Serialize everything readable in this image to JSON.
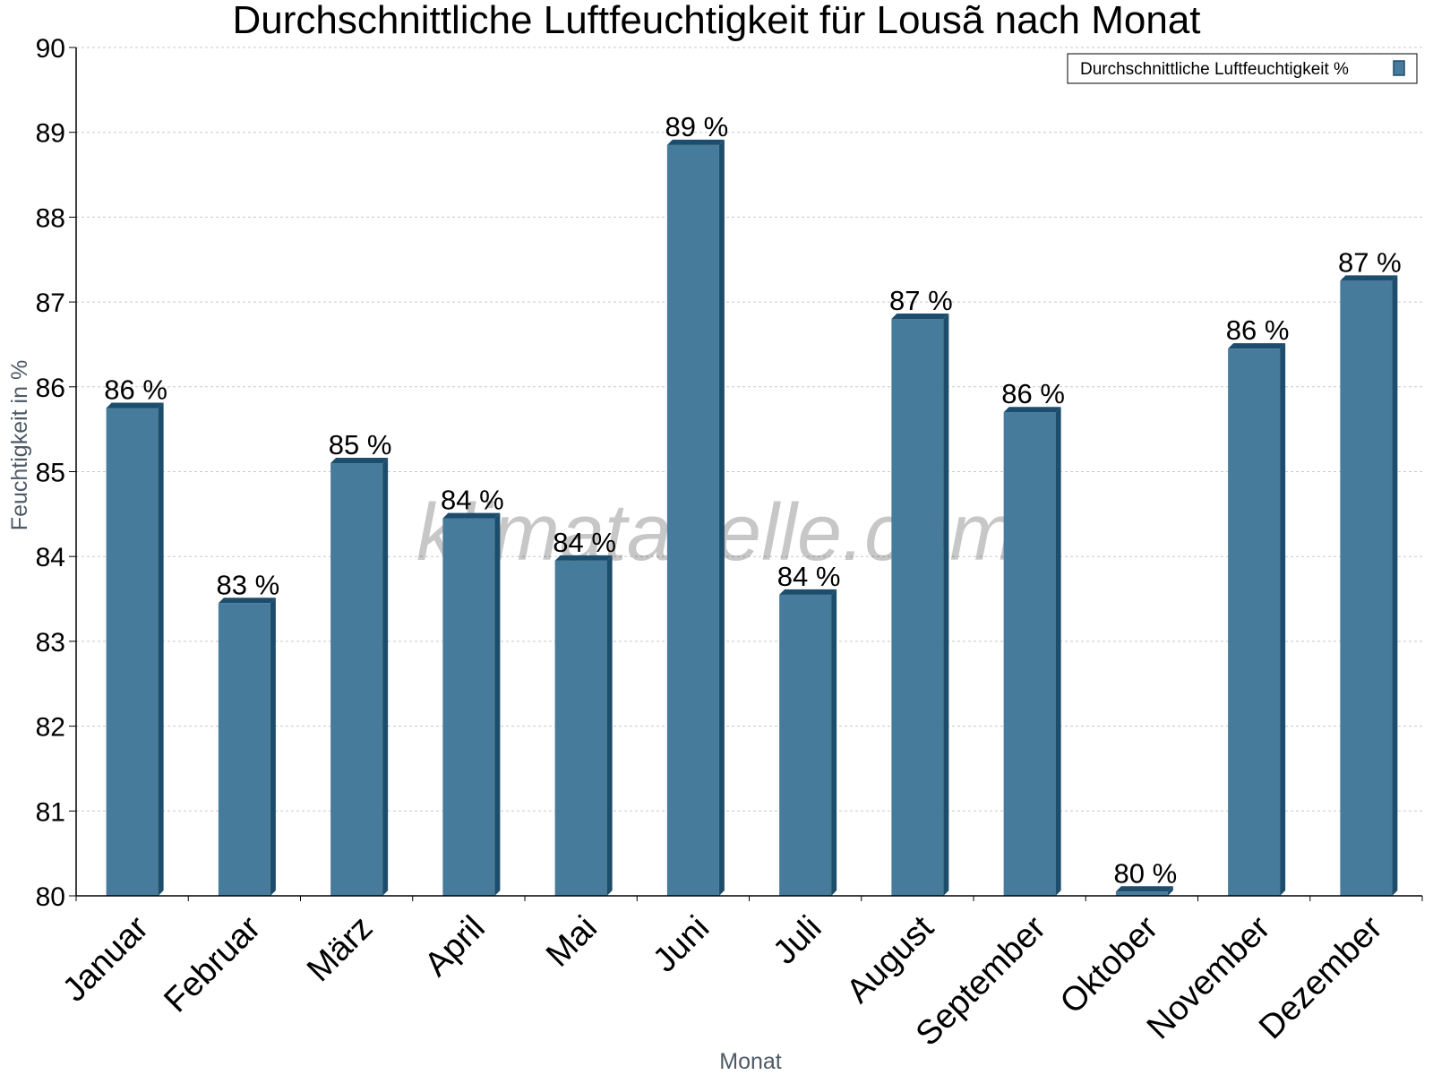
{
  "chart_data": {
    "type": "bar",
    "title": "Durchschnittliche Luftfeuchtigkeit für Lousã nach Monat",
    "xlabel": "Monat",
    "ylabel": "Feuchtigkeit in %",
    "ylim": [
      80,
      90
    ],
    "yticks": [
      80,
      81,
      82,
      83,
      84,
      85,
      86,
      87,
      88,
      89,
      90
    ],
    "grid": true,
    "legend_position": "top-right",
    "categories": [
      "Januar",
      "Februar",
      "März",
      "April",
      "Mai",
      "Juni",
      "Juli",
      "August",
      "September",
      "Oktober",
      "November",
      "Dezember"
    ],
    "series": [
      {
        "name": "Durchschnittliche Luftfeuchtigkeit %",
        "values": [
          85.75,
          83.45,
          85.1,
          84.45,
          83.95,
          88.85,
          83.55,
          86.8,
          85.7,
          80.05,
          86.45,
          87.25
        ],
        "labels": [
          "86 %",
          "83 %",
          "85 %",
          "84 %",
          "84 %",
          "89 %",
          "84 %",
          "87 %",
          "86 %",
          "80 %",
          "86 %",
          "87 %"
        ]
      }
    ],
    "colors": {
      "bar": "#467b9c",
      "bar_side": "#1d4d6c",
      "grid": "#c8c8c8",
      "axis": "#000000"
    }
  },
  "watermark": "klimatabelle.com"
}
